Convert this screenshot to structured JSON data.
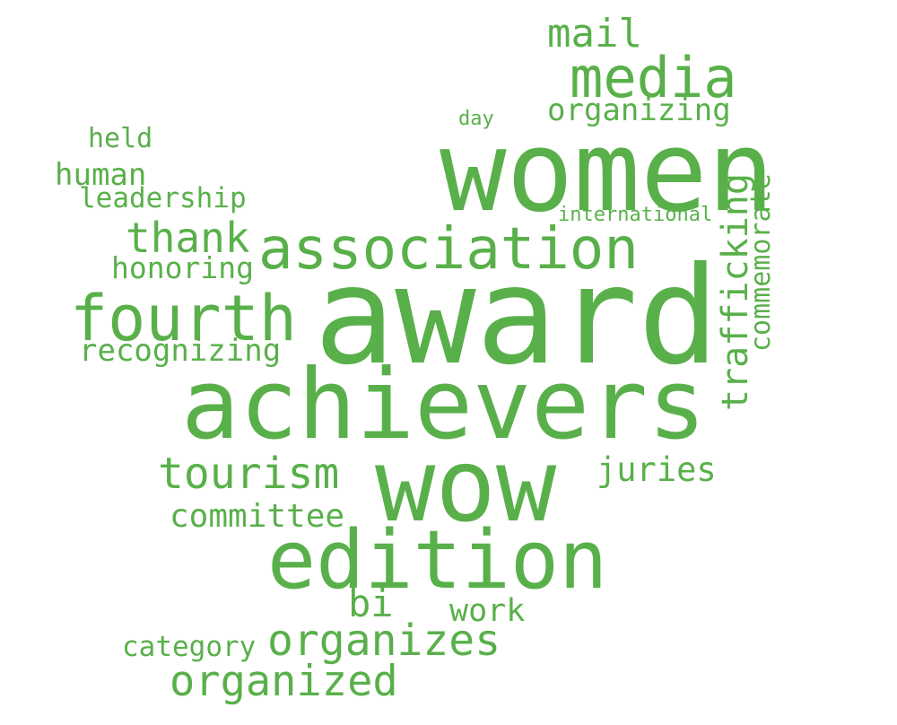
{
  "color": "#59b04a",
  "words": {
    "award": "award",
    "achievers": "achievers",
    "women": "women",
    "wow": "wow",
    "edition": "edition",
    "association": "association",
    "media": "media",
    "fourth": "fourth",
    "tourism": "tourism",
    "organizes": "organizes",
    "organized": "organized",
    "mail": "mail",
    "thank": "thank",
    "trafficking": "trafficking",
    "commemorate": "commemorate",
    "organizing": "organizing",
    "committee": "committee",
    "recognizing": "recognizing",
    "juries": "juries",
    "bi": "bi",
    "work": "work",
    "honoring": "honoring",
    "human": "human",
    "leadership": "leadership",
    "held": "held",
    "category": "category",
    "international": "international",
    "day": "day"
  }
}
